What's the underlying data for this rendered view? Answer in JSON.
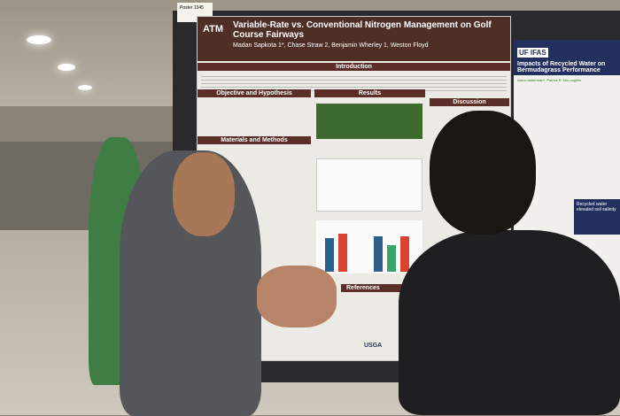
{
  "poster_number": "Poster 1345",
  "main_poster": {
    "logo": "ATM",
    "title": "Variable-Rate vs. Conventional Nitrogen Management on Golf Course Fairways",
    "authors": "Madan Sapkota 1*, Chase Straw 2, Benjamin Wherley 1, Weston Floyd",
    "sections": [
      "Introduction",
      "Objective and Hypothesis",
      "Materials and Methods",
      "Results",
      "Discussion",
      "References"
    ],
    "footer_logo": "USGA"
  },
  "adjacent_poster": {
    "logo": "UF IFAS",
    "title": "Impacts of Recycled Water on Bermudagrass Performance",
    "authors": "Aaron Ackerman*, Patrick R. McLoughlin",
    "banner": "Recycled water elevated soil salinity"
  },
  "colors": {
    "poster_header": "#4e2e25",
    "ifas_header": "#23305e"
  }
}
